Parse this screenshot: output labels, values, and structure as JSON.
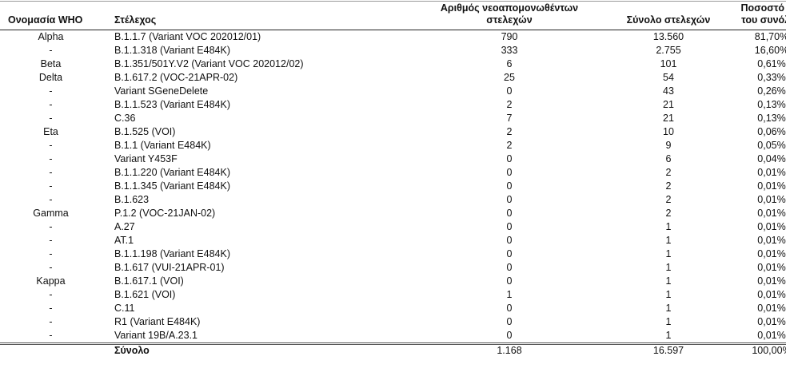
{
  "headers": {
    "who": "Ονομασία WHO",
    "strain": "Στέλεχος",
    "new_isolated": "Αριθμός νεοαπομονωθέντων στελεχών",
    "total": "Σύνολο στελεχών",
    "percent": "Ποσοστό επί του συνόλου"
  },
  "rows": [
    {
      "who": "Alpha",
      "strain": "B.1.1.7 (Variant VOC 202012/01)",
      "new": "790",
      "total": "13.560",
      "pct": "81,70%"
    },
    {
      "who": "-",
      "strain": "B.1.1.318 (Variant E484K)",
      "new": "333",
      "total": "2.755",
      "pct": "16,60%"
    },
    {
      "who": "Beta",
      "strain": "B.1.351/501Y.V2 (Variant VOC 202012/02)",
      "new": "6",
      "total": "101",
      "pct": "0,61%"
    },
    {
      "who": "Delta",
      "strain": "B.1.617.2 (VOC-21APR-02)",
      "new": "25",
      "total": "54",
      "pct": "0,33%"
    },
    {
      "who": "-",
      "strain": "Variant SGeneDelete",
      "new": "0",
      "total": "43",
      "pct": "0,26%"
    },
    {
      "who": "-",
      "strain": "B.1.1.523 (Variant E484K)",
      "new": "2",
      "total": "21",
      "pct": "0,13%"
    },
    {
      "who": "-",
      "strain": "C.36",
      "new": "7",
      "total": "21",
      "pct": "0,13%"
    },
    {
      "who": "Eta",
      "strain": "B.1.525 (VOI)",
      "new": "2",
      "total": "10",
      "pct": "0,06%"
    },
    {
      "who": "-",
      "strain": "B.1.1 (Variant E484K)",
      "new": "2",
      "total": "9",
      "pct": "0,05%"
    },
    {
      "who": "-",
      "strain": "Variant Y453F",
      "new": "0",
      "total": "6",
      "pct": "0,04%"
    },
    {
      "who": "-",
      "strain": "B.1.1.220 (Variant E484K)",
      "new": "0",
      "total": "2",
      "pct": "0,01%"
    },
    {
      "who": "-",
      "strain": "B.1.1.345 (Variant E484K)",
      "new": "0",
      "total": "2",
      "pct": "0,01%"
    },
    {
      "who": "-",
      "strain": "B.1.623",
      "new": "0",
      "total": "2",
      "pct": "0,01%"
    },
    {
      "who": "Gamma",
      "strain": "P.1.2 (VOC-21JAN-02)",
      "new": "0",
      "total": "2",
      "pct": "0,01%"
    },
    {
      "who": "-",
      "strain": "A.27",
      "new": "0",
      "total": "1",
      "pct": "0,01%"
    },
    {
      "who": "-",
      "strain": "AT.1",
      "new": "0",
      "total": "1",
      "pct": "0,01%"
    },
    {
      "who": "-",
      "strain": "B.1.1.198 (Variant E484K)",
      "new": "0",
      "total": "1",
      "pct": "0,01%"
    },
    {
      "who": "-",
      "strain": "B.1.617 (VUI-21APR-01)",
      "new": "0",
      "total": "1",
      "pct": "0,01%"
    },
    {
      "who": "Kappa",
      "strain": "B.1.617.1 (VOI)",
      "new": "0",
      "total": "1",
      "pct": "0,01%"
    },
    {
      "who": "-",
      "strain": "B.1.621 (VOI)",
      "new": "1",
      "total": "1",
      "pct": "0,01%"
    },
    {
      "who": "-",
      "strain": "C.11",
      "new": "0",
      "total": "1",
      "pct": "0,01%"
    },
    {
      "who": "-",
      "strain": "R1 (Variant E484K)",
      "new": "0",
      "total": "1",
      "pct": "0,01%"
    },
    {
      "who": "-",
      "strain": "Variant 19B/A.23.1",
      "new": "0",
      "total": "1",
      "pct": "0,01%"
    }
  ],
  "total_row": {
    "who": "",
    "strain": "Σύνολο",
    "new": "1.168",
    "total": "16.597",
    "pct": "100,00%"
  }
}
